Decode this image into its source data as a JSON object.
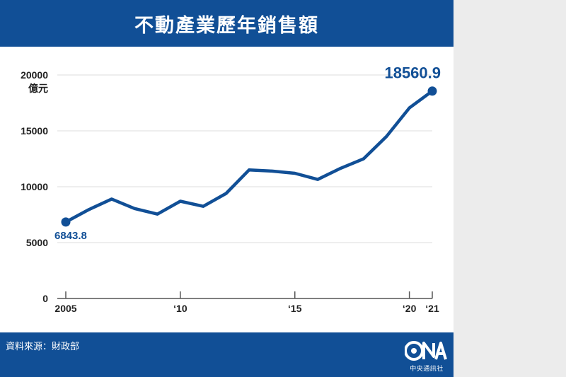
{
  "header": {
    "title": "不動產業歷年銷售額"
  },
  "footer": {
    "source": "資料來源：財政部",
    "org_name": "中央通訊社",
    "logo_letters": "CNA"
  },
  "colors": {
    "brand": "#114f96",
    "line": "#114f96",
    "grid": "#dddddd",
    "axis": "#555555"
  },
  "chart_data": {
    "type": "line",
    "title": "不動產業歷年銷售額",
    "ylabel": "億元",
    "xlabel": "",
    "ylim": [
      0,
      20000
    ],
    "xlim": [
      2005,
      2021
    ],
    "yticks": [
      0,
      5000,
      10000,
      15000,
      20000
    ],
    "ytick_labels": [
      "0",
      "5000",
      "10000",
      "15000",
      "20000"
    ],
    "xticks": [
      2005,
      2010,
      2015,
      2020,
      2021
    ],
    "xtick_labels": [
      "2005",
      "‘10",
      "‘15",
      "‘20",
      "‘21"
    ],
    "grid": true,
    "series": [
      {
        "x": [
          2005,
          2006,
          2007,
          2008,
          2009,
          2010,
          2011,
          2012,
          2013,
          2014,
          2015,
          2016,
          2017,
          2018,
          2019,
          2020,
          2021
        ],
        "values": [
          6843.8,
          7950,
          8900,
          8050,
          7550,
          8700,
          8250,
          9400,
          11500,
          11400,
          11200,
          10650,
          11650,
          12500,
          14500,
          17050,
          18560.9
        ]
      }
    ],
    "annotations": [
      {
        "x": 2005,
        "text": "6843.8"
      },
      {
        "x": 2021,
        "text": "18560.9"
      }
    ]
  }
}
